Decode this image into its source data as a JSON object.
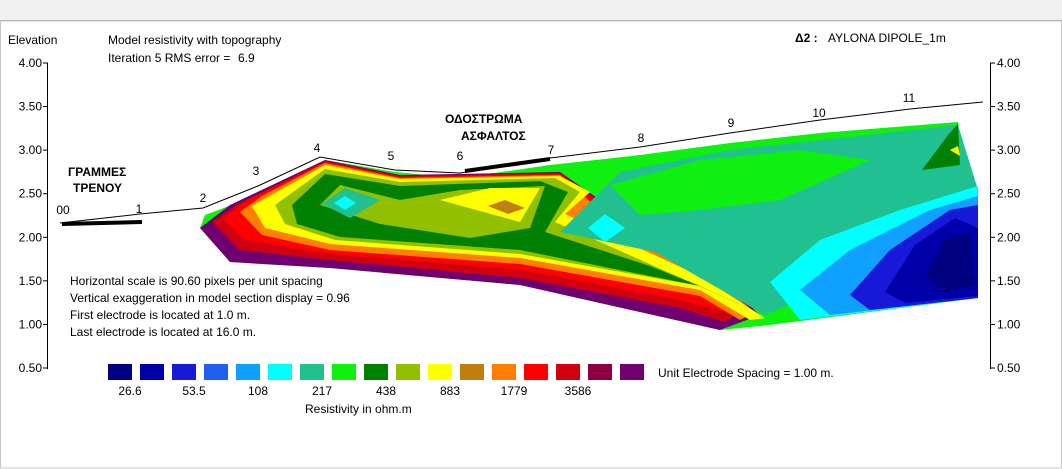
{
  "chart_data": {
    "type": "contour-section",
    "title": "Model resistivity with topography",
    "iteration_label": "Iteration 5 RMS error =",
    "rms_error": 6.9,
    "y_label": "Elevation",
    "profile_code": "Δ2 :",
    "profile_name": "AYLONA DIPOLE_1m",
    "ylim": [
      0.5,
      4.0
    ],
    "yticks": [
      {
        "value": 4.0,
        "label": "4.00"
      },
      {
        "value": 3.5,
        "label": "3.50"
      },
      {
        "value": 3.0,
        "label": "3.00"
      },
      {
        "value": 2.5,
        "label": "2.50"
      },
      {
        "value": 2.0,
        "label": "2.00"
      },
      {
        "value": 1.5,
        "label": "1.50"
      },
      {
        "value": 1.0,
        "label": "1.00"
      },
      {
        "value": 0.5,
        "label": "0.50"
      }
    ],
    "electrodes": [
      "00",
      "1",
      "2",
      "3",
      "4",
      "5",
      "6",
      "7",
      "8",
      "9",
      "10",
      "11"
    ],
    "annotations": [
      [
        "ΓΡΑΜΜΕΣ",
        "ΤΡΕΝΟΥ"
      ],
      [
        "ΟΔΟΣΤΡΩΜΑ",
        "ΑΣΦΑΛΤΟΣ"
      ]
    ],
    "notes": [
      "Horizontal scale is 90.60 pixels per unit spacing",
      "Vertical exaggeration in model section display = 0.96",
      "First electrode is located at 1.0  m.",
      "Last electrode is located at 16.0 m."
    ],
    "colorbar": {
      "colors": [
        "#000080",
        "#0000a8",
        "#1818d8",
        "#2060f0",
        "#10a0ff",
        "#00ffff",
        "#20c090",
        "#10f010",
        "#008000",
        "#90c000",
        "#ffff00",
        "#c08010",
        "#ff8000",
        "#ff0000",
        "#d00010",
        "#900040",
        "#700070"
      ],
      "labels": [
        26.6,
        53.5,
        108,
        217,
        438,
        883,
        1779,
        3586
      ],
      "title": "Resistivity in ohm.m"
    },
    "spacing_label": "Unit Electrode Spacing = 1.00 m."
  }
}
